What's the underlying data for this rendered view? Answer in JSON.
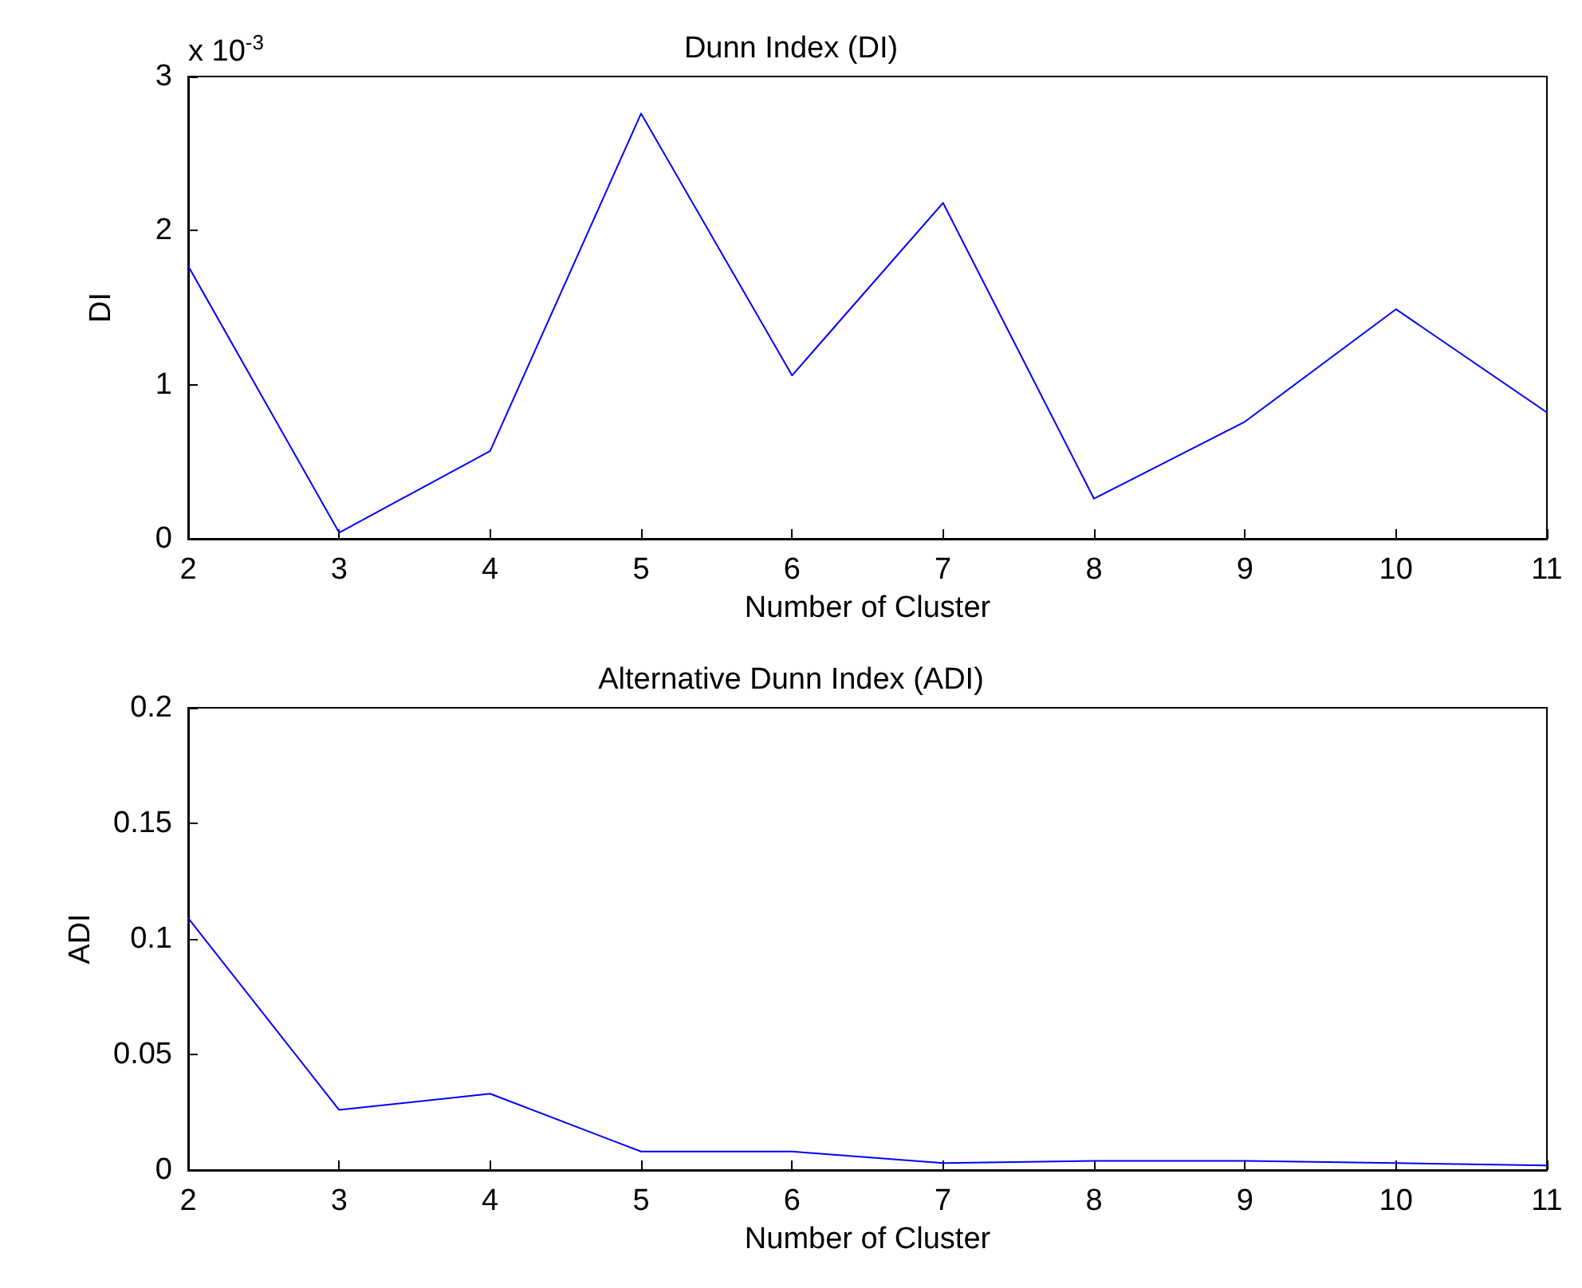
{
  "chart_data": [
    {
      "type": "line",
      "title": "Dunn Index (DI)",
      "xlabel": "Number of Cluster",
      "ylabel": "DI",
      "annotations": [
        "x 10$^{-3}$"
      ],
      "x": [
        2,
        3,
        4,
        5,
        6,
        7,
        8,
        9,
        10,
        11
      ],
      "series": [
        {
          "color": "#0000ff",
          "values": [
            1.77,
            0.04,
            0.57,
            2.76,
            1.06,
            2.18,
            0.26,
            0.76,
            1.49,
            0.82
          ]
        }
      ],
      "xlim": [
        2,
        11
      ],
      "xticks": [
        2,
        3,
        4,
        5,
        6,
        7,
        8,
        9,
        10,
        11
      ],
      "ylim": [
        0,
        3
      ],
      "yticks": [
        0,
        1,
        2,
        3
      ],
      "grid": false,
      "marker": "none",
      "line_style": "solid"
    },
    {
      "type": "line",
      "title": "Alternative Dunn Index (ADI)",
      "xlabel": "Number of Cluster",
      "ylabel": "ADI",
      "x": [
        2,
        3,
        4,
        5,
        6,
        7,
        8,
        9,
        10,
        11
      ],
      "series": [
        {
          "color": "#0000ff",
          "values": [
            0.109,
            0.026,
            0.033,
            0.008,
            0.008,
            0.003,
            0.004,
            0.004,
            0.003,
            0.002
          ]
        }
      ],
      "xlim": [
        2,
        11
      ],
      "xticks": [
        2,
        3,
        4,
        5,
        6,
        7,
        8,
        9,
        10,
        11
      ],
      "ylim": [
        0,
        0.2
      ],
      "yticks": [
        0,
        0.05,
        0.1,
        0.15,
        0.2
      ],
      "grid": false,
      "marker": "none",
      "line_style": "solid"
    }
  ]
}
